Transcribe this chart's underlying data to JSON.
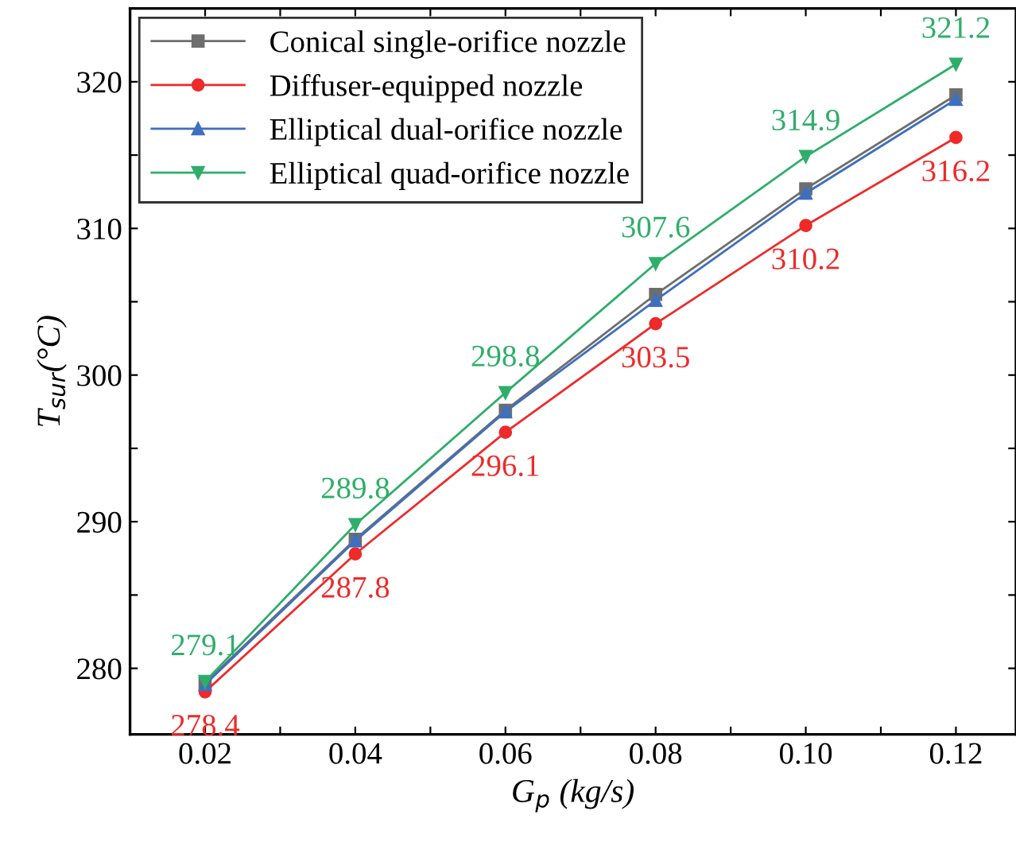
{
  "chart_data": {
    "type": "line",
    "xlabel": "G$_{p}$ (kg/s)",
    "ylabel": "T$_{sur}$(°C)",
    "x": [
      0.02,
      0.04,
      0.06,
      0.08,
      0.1,
      0.12
    ],
    "xlim": [
      0.01,
      0.128
    ],
    "xticks": [
      {
        "value": 0.02,
        "label": "0.02"
      },
      {
        "value": 0.03,
        "label": null
      },
      {
        "value": 0.04,
        "label": "0.04"
      },
      {
        "value": 0.05,
        "label": null
      },
      {
        "value": 0.06,
        "label": "0.06"
      },
      {
        "value": 0.07,
        "label": null
      },
      {
        "value": 0.08,
        "label": "0.08"
      },
      {
        "value": 0.09,
        "label": null
      },
      {
        "value": 0.1,
        "label": "0.10"
      },
      {
        "value": 0.11,
        "label": null
      },
      {
        "value": 0.12,
        "label": "0.12"
      }
    ],
    "ylim": [
      275.5,
      325
    ],
    "yticks": [
      {
        "value": 280,
        "label": "280"
      },
      {
        "value": 285,
        "label": null
      },
      {
        "value": 290,
        "label": "290"
      },
      {
        "value": 295,
        "label": null
      },
      {
        "value": 300,
        "label": "300"
      },
      {
        "value": 305,
        "label": null
      },
      {
        "value": 310,
        "label": "310"
      },
      {
        "value": 315,
        "label": null
      },
      {
        "value": 320,
        "label": "320"
      }
    ],
    "grid": false,
    "legend": "top left",
    "line_style": "solid",
    "series": [
      {
        "name": "Conical single-orifice nozzle",
        "color": "#6e6e6e",
        "marker": "square",
        "values": [
          279.0,
          288.8,
          297.6,
          305.5,
          312.7,
          319.1
        ]
      },
      {
        "name": "Diffuser-equipped nozzle",
        "color": "#ee2a2a",
        "marker": "circle",
        "values": [
          278.4,
          287.8,
          296.1,
          303.5,
          310.2,
          316.2
        ],
        "value_labels": [
          "278.4",
          "287.8",
          "296.1",
          "303.5",
          "310.2",
          "316.2"
        ]
      },
      {
        "name": "Elliptical dual-orifice nozzle",
        "color": "#3f6fbf",
        "marker": "triangle",
        "values": [
          278.9,
          288.7,
          297.5,
          305.1,
          312.4,
          318.8
        ]
      },
      {
        "name": "Elliptical quad-orifice nozzle",
        "color": "#2fae6a",
        "marker": "triangle_down",
        "values": [
          279.1,
          289.8,
          298.8,
          307.6,
          314.9,
          321.2
        ],
        "value_labels": [
          "279.1",
          "289.8",
          "298.8",
          "307.6",
          "314.9",
          "321.2"
        ]
      }
    ]
  }
}
